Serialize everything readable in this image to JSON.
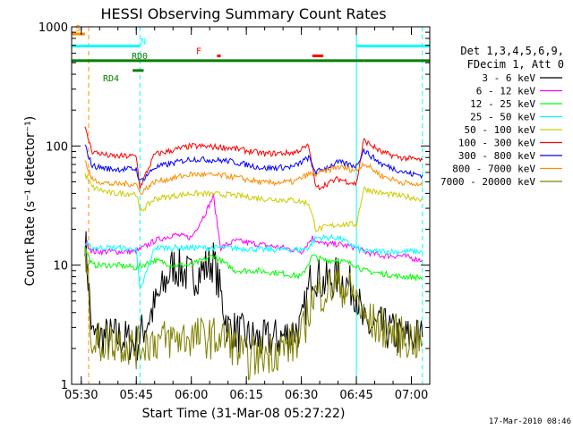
{
  "chart_data": {
    "type": "line",
    "title": "HESSI Observing Summary Count Rates",
    "xlabel": "Start Time (31-Mar-08 05:27:22)",
    "ylabel": "Count Rate (s⁻¹ detector⁻¹)",
    "y_scale": "log",
    "ylim": [
      1,
      1000
    ],
    "xlim": [
      "05:27:22",
      "07:05:00"
    ],
    "x_ticks": [
      "05:30",
      "05:45",
      "06:00",
      "06:15",
      "06:30",
      "06:45",
      "07:00"
    ],
    "y_ticks": [
      "1",
      "10",
      "100",
      "1000"
    ],
    "footer": "17-Mar-2010 08:46",
    "legend": {
      "placement": "right",
      "header": [
        "Det 1,3,4,5,6,9,",
        "FDecim 1, Att 0"
      ]
    },
    "series": [
      {
        "name": "3 - 6 keV",
        "color": "#000000",
        "x": [
          "05:31",
          "05:33",
          "05:40",
          "05:45",
          "05:50",
          "05:55",
          "06:00",
          "06:03",
          "06:06",
          "06:10",
          "06:15",
          "06:20",
          "06:25",
          "06:30",
          "06:33",
          "06:36",
          "06:40",
          "06:45",
          "06:47",
          "06:52",
          "06:57",
          "07:00",
          "07:03"
        ],
        "y": [
          18,
          2.5,
          2.5,
          2.2,
          4.5,
          10,
          8,
          9,
          11,
          3,
          2.5,
          2.3,
          2.5,
          3,
          9,
          7,
          8,
          6,
          3,
          3,
          2.5,
          2.5,
          2.5
        ]
      },
      {
        "name": "6 - 12 keV",
        "color": "#ff00ff",
        "x": [
          "05:31",
          "05:33",
          "05:40",
          "05:45",
          "05:50",
          "05:55",
          "06:00",
          "06:04",
          "06:06",
          "06:08",
          "06:12",
          "06:18",
          "06:25",
          "06:30",
          "06:33",
          "06:36",
          "06:40",
          "06:45",
          "06:47",
          "06:52",
          "06:57",
          "07:00",
          "07:03"
        ],
        "y": [
          16,
          13,
          13,
          13,
          16,
          18,
          17,
          28,
          38,
          14,
          16,
          15,
          14,
          13,
          17,
          15,
          15,
          14,
          13,
          12,
          12,
          11.5,
          11
        ]
      },
      {
        "name": "12 - 25 keV",
        "color": "#00ff00",
        "x": [
          "05:31",
          "05:33",
          "05:40",
          "05:45",
          "05:50",
          "05:55",
          "06:00",
          "06:06",
          "06:12",
          "06:18",
          "06:25",
          "06:30",
          "06:33",
          "06:36",
          "06:40",
          "06:45",
          "06:47",
          "06:52",
          "06:57",
          "07:00",
          "07:03"
        ],
        "y": [
          14,
          10,
          10,
          9.5,
          11,
          10,
          10,
          12,
          9,
          9,
          8.5,
          8,
          12,
          11,
          11,
          10,
          9,
          8.5,
          8,
          8,
          7.8
        ]
      },
      {
        "name": "25 - 50 keV",
        "color": "#00ffff",
        "x": [
          "05:31",
          "05:33",
          "05:40",
          "05:45",
          "05:46",
          "05:50",
          "06:00",
          "06:10",
          "06:20",
          "06:30",
          "06:32",
          "06:34",
          "06:40",
          "06:45",
          "06:47",
          "06:52",
          "06:57",
          "07:00",
          "07:03"
        ],
        "y": [
          15,
          14,
          14,
          13.5,
          6,
          14,
          14,
          14,
          13.5,
          13.5,
          14,
          17,
          17,
          14,
          13,
          13,
          13,
          13,
          13
        ]
      },
      {
        "name": "50 - 100 keV",
        "color": "#cccc00",
        "x": [
          "05:31",
          "05:33",
          "05:38",
          "05:43",
          "05:45",
          "05:46",
          "05:50",
          "06:00",
          "06:10",
          "06:20",
          "06:28",
          "06:32",
          "06:34",
          "06:40",
          "06:45",
          "06:47",
          "06:52",
          "06:57",
          "07:00",
          "07:03"
        ],
        "y": [
          58,
          45,
          40,
          40,
          40,
          28,
          36,
          40,
          39,
          36,
          35,
          33,
          20,
          22,
          22,
          44,
          40,
          38,
          37,
          36
        ]
      },
      {
        "name": "100 - 300 keV",
        "color": "#ff0000",
        "x": [
          "05:31",
          "05:33",
          "05:38",
          "05:43",
          "05:45",
          "05:46",
          "05:50",
          "06:00",
          "06:10",
          "06:20",
          "06:28",
          "06:32",
          "06:34",
          "06:40",
          "06:45",
          "06:47",
          "06:52",
          "06:57",
          "07:00",
          "07:03"
        ],
        "y": [
          140,
          90,
          82,
          82,
          82,
          45,
          85,
          100,
          97,
          86,
          88,
          100,
          44,
          53,
          48,
          112,
          88,
          80,
          78,
          76
        ]
      },
      {
        "name": "300 - 800 keV",
        "color": "#0000ff",
        "x": [
          "05:31",
          "05:33",
          "05:38",
          "05:43",
          "05:45",
          "05:46",
          "05:50",
          "06:00",
          "06:10",
          "06:20",
          "06:28",
          "06:32",
          "06:34",
          "06:40",
          "06:45",
          "06:47",
          "06:52",
          "06:57",
          "07:00",
          "07:03"
        ],
        "y": [
          100,
          68,
          64,
          64,
          64,
          50,
          66,
          78,
          75,
          65,
          67,
          80,
          60,
          73,
          68,
          92,
          70,
          62,
          58,
          57
        ]
      },
      {
        "name": "800 - 7000 keV",
        "color": "#ff8c00",
        "x": [
          "05:31",
          "05:33",
          "05:38",
          "05:43",
          "05:45",
          "05:46",
          "05:50",
          "06:00",
          "06:10",
          "06:20",
          "06:28",
          "06:32",
          "06:34",
          "06:40",
          "06:45",
          "06:47",
          "06:52",
          "06:57",
          "07:00",
          "07:03"
        ],
        "y": [
          75,
          52,
          48,
          48,
          48,
          40,
          50,
          58,
          56,
          49,
          50,
          58,
          58,
          67,
          62,
          72,
          56,
          50,
          48,
          46
        ]
      },
      {
        "name": "7000 - 20000 keV",
        "color": "#808000",
        "x": [
          "05:31",
          "05:33",
          "05:40",
          "05:45",
          "05:48",
          "05:55",
          "06:00",
          "06:10",
          "06:15",
          "06:20",
          "06:25",
          "06:30",
          "06:33",
          "06:36",
          "06:40",
          "06:45",
          "06:47",
          "06:52",
          "06:57",
          "07:00",
          "07:03"
        ],
        "y": [
          16,
          2.2,
          2.3,
          2,
          2.3,
          2.4,
          2.5,
          2.4,
          1.6,
          1.8,
          2,
          2.4,
          5.5,
          6,
          7,
          5.5,
          3.5,
          3,
          2.5,
          2.4,
          2.2
        ]
      }
    ],
    "bars": [
      {
        "label": "S",
        "color": "#ff8c00",
        "segments": [
          [
            "05:27:22",
            "05:31"
          ]
        ],
        "level": 870
      },
      {
        "label": "N",
        "color": "#00ffff",
        "segments": [
          [
            "05:27:22",
            "05:46"
          ],
          [
            "06:45",
            "07:05"
          ]
        ],
        "level": 690
      },
      {
        "label": "F",
        "color": "#ff0000",
        "segments": [
          [
            "06:07",
            "06:08"
          ],
          [
            "06:33",
            "06:36"
          ]
        ],
        "level": 570
      },
      {
        "label": "RD0",
        "color": "#008000",
        "segments": [
          [
            "05:27:22",
            "06:33"
          ],
          [
            "06:33",
            "06:47"
          ],
          [
            "06:47",
            "07:05"
          ]
        ],
        "level": 520
      },
      {
        "label": "RD4",
        "color": "#008000",
        "segments": [
          [
            "05:44",
            "05:47"
          ]
        ],
        "level": 430
      }
    ],
    "vlines": [
      {
        "time": "05:27:22",
        "color": "#00ffff",
        "style": "solid"
      },
      {
        "time": "05:32",
        "color": "#ff8c00",
        "style": "dashed"
      },
      {
        "time": "05:46",
        "color": "#00ffff",
        "style": "dashed"
      },
      {
        "time": "06:45",
        "color": "#00ffff",
        "style": "solid"
      },
      {
        "time": "07:03",
        "color": "#00ffff",
        "style": "dashed"
      }
    ]
  }
}
